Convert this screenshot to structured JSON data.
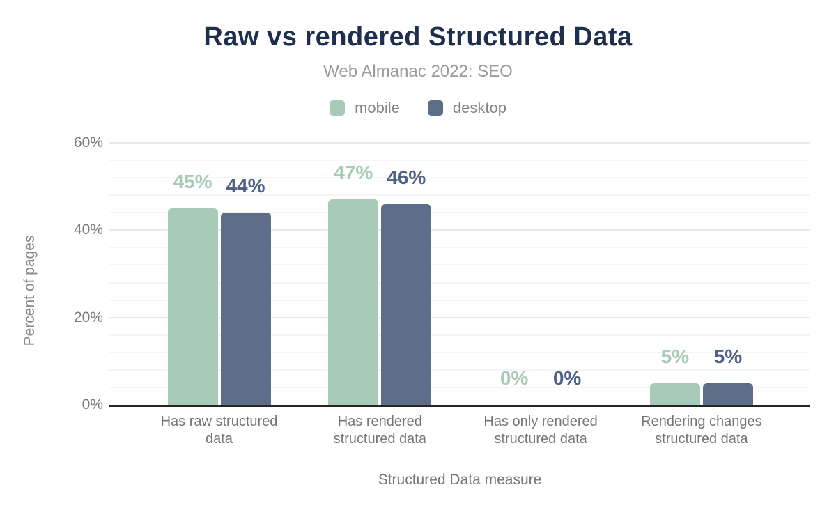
{
  "chart_data": {
    "type": "bar",
    "title": "Raw vs rendered Structured Data",
    "subtitle": "Web Almanac 2022: SEO",
    "xlabel": "Structured Data measure",
    "ylabel": "Percent of pages",
    "categories": [
      "Has raw structured data",
      "Has rendered structured data",
      "Has only rendered structured data",
      "Rendering changes structured data"
    ],
    "category_line_breaks": [
      [
        "Has raw structured",
        "data"
      ],
      [
        "Has rendered",
        "structured data"
      ],
      [
        "Has only rendered",
        "structured data"
      ],
      [
        "Rendering changes",
        "structured data"
      ]
    ],
    "series": [
      {
        "name": "mobile",
        "values": [
          45,
          47,
          0,
          5
        ],
        "labels": [
          "45%",
          "47%",
          "0%",
          "5%"
        ]
      },
      {
        "name": "desktop",
        "values": [
          44,
          46,
          0,
          5
        ],
        "labels": [
          "44%",
          "46%",
          "0%",
          "5%"
        ]
      }
    ],
    "ylim": [
      0,
      60
    ],
    "yticks": [
      "0%",
      "20%",
      "40%",
      "60%"
    ],
    "ytick_values": [
      0,
      20,
      40,
      60
    ],
    "minor_grid_step": 4,
    "major_grid_step": 20,
    "grid": true,
    "legend_position": "top",
    "colors": {
      "mobile_bar": "#a8cab9",
      "desktop_bar": "#5e6e89",
      "mobile_label": "#a8cab9",
      "desktop_label": "#4f6185",
      "title": "#1d2e4e",
      "subtitle": "#9b9b9b",
      "axis_text": "#757575",
      "axis_line": "#262626",
      "grid_major": "#e8e8e8",
      "grid_minor": "#f5f5f5"
    }
  }
}
